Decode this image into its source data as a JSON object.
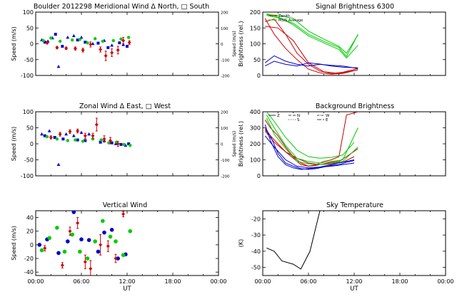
{
  "chart_data": [
    {
      "type": "scatter",
      "title": "Boulder   2012298     Meridional Wind   Δ North, □ South",
      "xlabel": "",
      "ylabel": "Speed (m/s)",
      "y2label": "Speed (m/s)",
      "xlim": [
        0,
        24
      ],
      "ylim": [
        -100,
        100
      ],
      "y2lim": [
        -200,
        200
      ],
      "xticks": [],
      "yticks": [
        -100,
        -50,
        0,
        50,
        100
      ],
      "y2ticks": [
        -200,
        -100,
        0,
        100,
        200
      ],
      "series": [
        {
          "name": "North",
          "color": "#0000cc",
          "marker": "triangle",
          "x": [
            0.8,
            1.6,
            2.2,
            3.0,
            4.2,
            5.0,
            6.0,
            7.5,
            9.0,
            10.0,
            11.5
          ],
          "y": [
            12,
            8,
            18,
            -72,
            20,
            25,
            20,
            0,
            10,
            -5,
            -3
          ]
        },
        {
          "name": "South",
          "color": "#0000cc",
          "marker": "square",
          "x": [
            1.2,
            2.6,
            3.5,
            5.5,
            6.5,
            8.2,
            9.5,
            11.0,
            12.0
          ],
          "y": [
            5,
            30,
            -8,
            12,
            5,
            2,
            -12,
            3,
            -8
          ]
        },
        {
          "name": "Vertical (green)",
          "color": "#00cc00",
          "marker": "circle",
          "x": [
            1.0,
            2.0,
            3.2,
            4.8,
            5.8,
            6.8,
            7.8,
            8.8,
            10.2,
            11.2,
            12.2
          ],
          "y": [
            10,
            18,
            8,
            12,
            14,
            3,
            16,
            8,
            10,
            15,
            20
          ]
        },
        {
          "name": "Zenith (red)",
          "color": "#cc0000",
          "marker": "diamond",
          "x": [
            1.5,
            2.8,
            4.0,
            5.2,
            6.2,
            7.2,
            8.5,
            9.2,
            10.0,
            10.8,
            11.5,
            12.3
          ],
          "y": [
            3,
            -12,
            -14,
            -15,
            -20,
            -2,
            -18,
            -38,
            -28,
            -20,
            10,
            4
          ],
          "err": [
            4,
            4,
            4,
            5,
            6,
            8,
            8,
            15,
            12,
            12,
            10,
            6
          ]
        }
      ]
    },
    {
      "type": "line",
      "title": "Signal Brightness      6300",
      "xlabel": "",
      "ylabel": "Brightness (rel.)",
      "xlim": [
        0,
        24
      ],
      "ylim": [
        0,
        200
      ],
      "xticks": [],
      "yticks": [
        0,
        50,
        100,
        150,
        200
      ],
      "legend": [
        "Zenith",
        "MSIS Average"
      ],
      "series": [
        {
          "name": "red1",
          "color": "#cc0000",
          "x": [
            0.3,
            1.5,
            3,
            4.5,
            6,
            7.5,
            9,
            10.5,
            12.5
          ],
          "y": [
            170,
            178,
            130,
            70,
            35,
            14,
            6,
            10,
            22
          ]
        },
        {
          "name": "red2",
          "color": "#cc0000",
          "x": [
            0.3,
            1.5,
            3,
            4.5,
            6,
            7.5,
            9,
            10.5,
            12.5
          ],
          "y": [
            180,
            130,
            85,
            50,
            20,
            8,
            4,
            6,
            18
          ]
        },
        {
          "name": "red3",
          "color": "#cc0000",
          "x": [
            0.3,
            2,
            4,
            6,
            8,
            10,
            12.5
          ],
          "y": [
            155,
            150,
            110,
            40,
            12,
            6,
            18
          ]
        },
        {
          "name": "green1",
          "color": "#00cc00",
          "x": [
            0.5,
            2,
            4,
            6,
            8,
            10,
            11,
            12.5
          ],
          "y": [
            190,
            182,
            165,
            130,
            108,
            88,
            60,
            130
          ]
        },
        {
          "name": "green2",
          "color": "#00cc00",
          "x": [
            0.5,
            2,
            4,
            6,
            8,
            10,
            11,
            12.5
          ],
          "y": [
            195,
            185,
            160,
            125,
            103,
            82,
            55,
            95
          ]
        },
        {
          "name": "green3",
          "color": "#00cc00",
          "x": [
            0.5,
            2,
            4,
            6,
            8,
            10,
            11,
            12.5
          ],
          "y": [
            192,
            190,
            180,
            140,
            115,
            92,
            70,
            128
          ]
        },
        {
          "name": "blue1",
          "color": "#0000cc",
          "x": [
            0.3,
            1.5,
            3,
            4.5,
            6,
            7.5,
            9,
            10.5,
            12.5
          ],
          "y": [
            40,
            62,
            45,
            35,
            30,
            35,
            32,
            30,
            22
          ]
        },
        {
          "name": "blue2",
          "color": "#0000cc",
          "x": [
            0.3,
            1.5,
            3,
            4.5,
            6,
            7.5,
            9,
            10.5,
            12.5
          ],
          "y": [
            30,
            45,
            35,
            30,
            40,
            36,
            30,
            26,
            24
          ]
        }
      ]
    },
    {
      "type": "scatter",
      "title": "Zonal Wind      Δ East, □ West",
      "xlabel": "",
      "ylabel": "Speed (m/s)",
      "y2label": "Speed (m/s)",
      "xlim": [
        0,
        24
      ],
      "ylim": [
        -100,
        100
      ],
      "y2lim": [
        -200,
        200
      ],
      "xticks": [],
      "yticks": [
        -100,
        -50,
        0,
        50,
        100
      ],
      "y2ticks": [
        -200,
        -100,
        0,
        100,
        200
      ],
      "series": [
        {
          "name": "East",
          "color": "#0000cc",
          "marker": "triangle",
          "x": [
            0.8,
            1.8,
            3.0,
            4.0,
            5.0,
            6.0,
            7.0,
            9.0,
            10.5,
            11.8
          ],
          "y": [
            30,
            40,
            -65,
            30,
            25,
            35,
            30,
            10,
            0,
            -5
          ]
        },
        {
          "name": "West",
          "color": "#0000cc",
          "marker": "square",
          "x": [
            1.2,
            2.5,
            3.6,
            5.5,
            6.5,
            8.5,
            10.0,
            11.2,
            12.2
          ],
          "y": [
            25,
            20,
            15,
            12,
            10,
            5,
            3,
            -2,
            0
          ]
        },
        {
          "name": "green",
          "color": "#00cc00",
          "marker": "circle",
          "x": [
            1.5,
            2.8,
            4.2,
            5.2,
            6.2,
            7.5,
            8.6,
            9.6,
            10.6,
            11.6,
            12.4
          ],
          "y": [
            22,
            15,
            10,
            12,
            8,
            15,
            12,
            3,
            5,
            -2,
            -5
          ]
        },
        {
          "name": "red",
          "color": "#cc0000",
          "marker": "diamond",
          "x": [
            2.0,
            3.2,
            4.5,
            5.5,
            6.5,
            7.5,
            8.0,
            9.0,
            9.8,
            10.8
          ],
          "y": [
            20,
            30,
            38,
            40,
            25,
            25,
            60,
            15,
            10,
            0
          ],
          "err": [
            5,
            6,
            6,
            6,
            8,
            8,
            20,
            10,
            10,
            8
          ]
        }
      ]
    },
    {
      "type": "line",
      "title": "Background Brightness",
      "xlabel": "",
      "ylabel": "Brightness (rel.)",
      "xlim": [
        0,
        24
      ],
      "ylim": [
        0,
        400
      ],
      "xticks": [],
      "yticks": [
        0,
        100,
        200,
        300,
        400
      ],
      "legend": [
        "Z",
        "N",
        "S",
        "W",
        "E"
      ],
      "series": [
        {
          "name": "red1",
          "color": "#cc0000",
          "x": [
            0.3,
            1,
            2,
            3,
            4,
            5,
            6,
            7,
            8,
            9,
            10,
            11,
            12.5
          ],
          "y": [
            350,
            300,
            250,
            180,
            120,
            80,
            60,
            70,
            90,
            100,
            120,
            380,
            400
          ]
        },
        {
          "name": "red2",
          "color": "#cc0000",
          "x": [
            0.3,
            1,
            2,
            3,
            4,
            5,
            6,
            7,
            8,
            9,
            10,
            11,
            12.5
          ],
          "y": [
            300,
            250,
            200,
            150,
            110,
            70,
            60,
            65,
            75,
            85,
            90,
            120,
            170
          ]
        },
        {
          "name": "red3",
          "color": "#cc0000",
          "x": [
            0.3,
            1.5,
            3,
            4.5,
            6,
            7.5,
            9,
            10.5,
            12
          ],
          "y": [
            280,
            210,
            150,
            110,
            80,
            70,
            75,
            85,
            120
          ]
        },
        {
          "name": "green1",
          "color": "#00cc00",
          "x": [
            0.5,
            1.5,
            3,
            4.5,
            6,
            7.5,
            9,
            10.5,
            12
          ],
          "y": [
            400,
            340,
            240,
            160,
            120,
            110,
            115,
            130,
            210
          ]
        },
        {
          "name": "green2",
          "color": "#00cc00",
          "x": [
            0.5,
            1.5,
            3,
            4.5,
            6,
            7.5,
            9,
            10.5,
            12.5
          ],
          "y": [
            380,
            300,
            190,
            110,
            90,
            80,
            90,
            100,
            300
          ]
        },
        {
          "name": "green3",
          "color": "#00cc00",
          "x": [
            0.5,
            1.5,
            3,
            4.5,
            6,
            7.5,
            9,
            10.5,
            12.5
          ],
          "y": [
            360,
            260,
            170,
            90,
            75,
            70,
            80,
            90,
            180
          ]
        },
        {
          "name": "blue1",
          "color": "#0000cc",
          "x": [
            0.3,
            1,
            2,
            3,
            4,
            5,
            6,
            7,
            8,
            9,
            10,
            11,
            12
          ],
          "y": [
            290,
            250,
            140,
            80,
            60,
            45,
            40,
            45,
            55,
            65,
            70,
            85,
            95
          ]
        },
        {
          "name": "blue2",
          "color": "#0000cc",
          "x": [
            0.3,
            1,
            2,
            3,
            4,
            5,
            6,
            7,
            8,
            9,
            10,
            11,
            12
          ],
          "y": [
            320,
            220,
            120,
            70,
            50,
            40,
            45,
            50,
            60,
            70,
            80,
            90,
            100
          ]
        },
        {
          "name": "blue3",
          "color": "#0000cc",
          "x": [
            0.3,
            1.5,
            3,
            4.5,
            6,
            7.5,
            9,
            10.5,
            12
          ],
          "y": [
            250,
            180,
            100,
            60,
            50,
            55,
            60,
            70,
            80
          ]
        }
      ]
    },
    {
      "type": "scatter",
      "title": "Vertical Wind",
      "xlabel": "UT",
      "ylabel": "Speed (m/s)",
      "xlim": [
        0,
        24
      ],
      "ylim": [
        -45,
        50
      ],
      "xticks": [
        "00:00",
        "06:00",
        "12:00",
        "18:00",
        "00:00"
      ],
      "yticks": [
        -40,
        -20,
        0,
        20,
        40
      ],
      "series": [
        {
          "name": "blue",
          "color": "#0000cc",
          "marker": "circle",
          "x": [
            0.5,
            1.5,
            3.0,
            4.2,
            5.0,
            6.0,
            7.0,
            8.2,
            9.0,
            10.0,
            10.8,
            11.8
          ],
          "y": [
            0,
            8,
            -12,
            5,
            48,
            8,
            7,
            -10,
            18,
            22,
            -20,
            -14
          ]
        },
        {
          "name": "green",
          "color": "#00cc00",
          "marker": "circle",
          "x": [
            0.8,
            1.8,
            2.8,
            3.8,
            4.8,
            5.8,
            6.8,
            7.8,
            8.8,
            9.8,
            10.5,
            11.5,
            12.4
          ],
          "y": [
            -8,
            10,
            25,
            -10,
            15,
            -10,
            -20,
            5,
            35,
            12,
            5,
            -15,
            20
          ]
        },
        {
          "name": "red",
          "color": "#cc0000",
          "marker": "diamond",
          "x": [
            1.2,
            3.5,
            4.5,
            5.5,
            6.5,
            7.2,
            8.5,
            9.5,
            10.5,
            11.5
          ],
          "y": [
            -5,
            -30,
            20,
            32,
            -25,
            -35,
            0,
            -2,
            -20,
            45
          ],
          "err": [
            4,
            4,
            6,
            8,
            10,
            12,
            15,
            8,
            6,
            4
          ]
        }
      ]
    },
    {
      "type": "line",
      "title": "Sky Temperature",
      "xlabel": "UT",
      "ylabel": "(K)",
      "xlim": [
        0,
        24
      ],
      "ylim": [
        -55,
        -15
      ],
      "xticks": [
        "00:00",
        "06:00",
        "12:00",
        "18:00",
        "00:00"
      ],
      "yticks": [
        -50,
        -40,
        -30,
        -20
      ],
      "series": [
        {
          "name": "sky",
          "color": "#000000",
          "x": [
            0.5,
            1.5,
            2.5,
            4.0,
            5.0,
            6.2,
            7.5
          ],
          "y": [
            -38,
            -40,
            -46,
            -48,
            -51,
            -40,
            -15
          ]
        }
      ]
    }
  ]
}
